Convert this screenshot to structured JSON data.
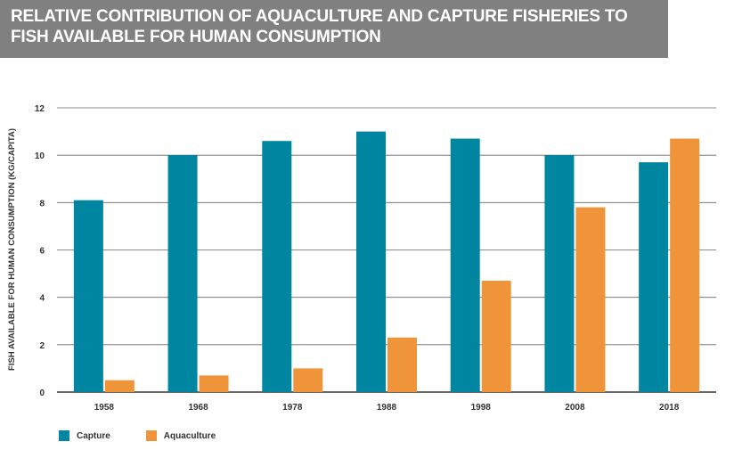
{
  "header": {
    "title": "RELATIVE CONTRIBUTION OF AQUACULTURE AND CAPTURE FISHERIES TO FISH AVAILABLE FOR HUMAN CONSUMPTION"
  },
  "colors": {
    "capture": "#0086a1",
    "aquaculture": "#f0943a",
    "grid": "#666666",
    "axis_text": "#333333"
  },
  "chart_data": {
    "type": "bar",
    "title": "RELATIVE CONTRIBUTION OF AQUACULTURE AND CAPTURE FISHERIES TO FISH AVAILABLE FOR HUMAN CONSUMPTION",
    "xlabel": "",
    "ylabel": "FISH AVAILABLE FOR HUMAN CONSUMPTION (KG/CAPITA)",
    "categories": [
      "1958",
      "1968",
      "1978",
      "1988",
      "1998",
      "2008",
      "2018"
    ],
    "series": [
      {
        "name": "Capture",
        "values": [
          8.1,
          10.0,
          10.6,
          11.0,
          10.7,
          10.0,
          9.7
        ]
      },
      {
        "name": "Aquaculture",
        "values": [
          0.5,
          0.7,
          1.0,
          2.3,
          4.7,
          7.8,
          10.7
        ]
      }
    ],
    "ylim": [
      0,
      12
    ],
    "yticks": [
      0,
      2,
      4,
      6,
      8,
      10,
      12
    ],
    "grid": true,
    "legend": "bottom-left"
  }
}
